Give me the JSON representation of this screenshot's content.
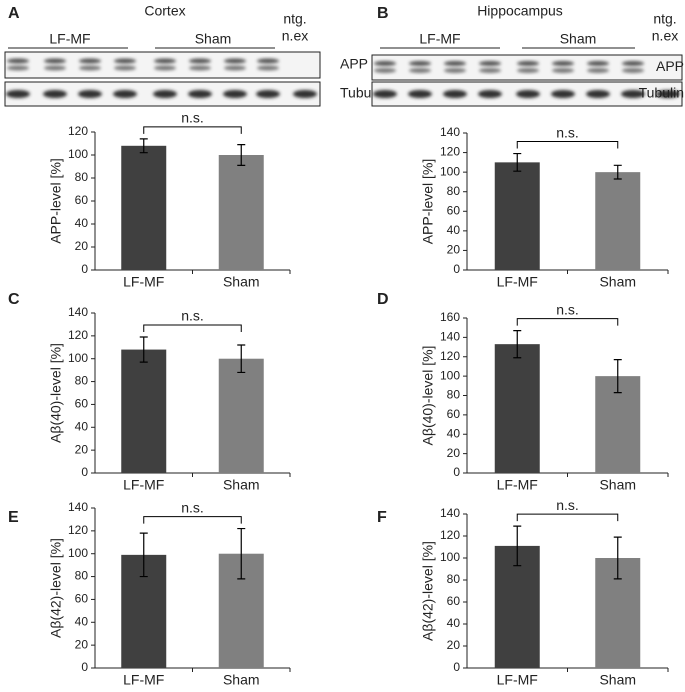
{
  "blots": [
    {
      "letter": "A",
      "title": "Cortex",
      "groups": [
        "LF-MF",
        "Sham"
      ],
      "control": [
        "ntg.",
        "n.ex"
      ],
      "rows": [
        "APP",
        "Tubulin"
      ]
    },
    {
      "letter": "B",
      "title": "Hippocampus",
      "groups": [
        "LF-MF",
        "Sham"
      ],
      "control": [
        "ntg.",
        "n.ex"
      ],
      "rows": [
        "APP",
        "Tubulin"
      ]
    }
  ],
  "chart_data": [
    {
      "type": "bar",
      "y_label": "APP-level [%]",
      "categories": [
        "LF-MF",
        "Sham"
      ],
      "values": [
        108,
        100
      ],
      "errors": [
        6,
        9
      ],
      "colors": [
        "#404040",
        "#808080"
      ],
      "ylim": [
        0,
        120
      ],
      "yticks": [
        0,
        20,
        40,
        60,
        80,
        100,
        120
      ],
      "annotation": "n.s."
    },
    {
      "type": "bar",
      "y_label": "APP-level [%]",
      "categories": [
        "LF-MF",
        "Sham"
      ],
      "values": [
        110,
        100
      ],
      "errors": [
        9,
        7
      ],
      "colors": [
        "#404040",
        "#808080"
      ],
      "ylim": [
        0,
        140
      ],
      "yticks": [
        0,
        20,
        40,
        60,
        80,
        100,
        120,
        140
      ],
      "annotation": "n.s."
    },
    {
      "type": "bar",
      "panel": "C",
      "y_label": "Aβ(40)-level [%]",
      "categories": [
        "LF-MF",
        "Sham"
      ],
      "values": [
        108,
        100
      ],
      "errors": [
        11,
        12
      ],
      "colors": [
        "#404040",
        "#808080"
      ],
      "ylim": [
        0,
        140
      ],
      "yticks": [
        0,
        20,
        40,
        60,
        80,
        100,
        120,
        140
      ],
      "annotation": "n.s."
    },
    {
      "type": "bar",
      "panel": "D",
      "y_label": "Aβ(40)-level [%]",
      "categories": [
        "LF-MF",
        "Sham"
      ],
      "values": [
        133,
        100
      ],
      "errors": [
        14,
        17
      ],
      "colors": [
        "#404040",
        "#808080"
      ],
      "ylim": [
        0,
        160
      ],
      "yticks": [
        0,
        20,
        40,
        60,
        80,
        100,
        120,
        140,
        160
      ],
      "annotation": "n.s."
    },
    {
      "type": "bar",
      "panel": "E",
      "y_label": "Aβ(42)-level [%]",
      "categories": [
        "LF-MF",
        "Sham"
      ],
      "values": [
        99,
        100
      ],
      "errors": [
        19,
        22
      ],
      "colors": [
        "#404040",
        "#808080"
      ],
      "ylim": [
        0,
        140
      ],
      "yticks": [
        0,
        20,
        40,
        60,
        80,
        100,
        120,
        140
      ],
      "annotation": "n.s."
    },
    {
      "type": "bar",
      "panel": "F",
      "y_label": "Aβ(42)-level [%]",
      "categories": [
        "LF-MF",
        "Sham"
      ],
      "values": [
        111,
        100
      ],
      "errors": [
        18,
        19
      ],
      "colors": [
        "#404040",
        "#808080"
      ],
      "ylim": [
        0,
        140
      ],
      "yticks": [
        0,
        20,
        40,
        60,
        80,
        100,
        120,
        140
      ],
      "annotation": "n.s."
    }
  ]
}
